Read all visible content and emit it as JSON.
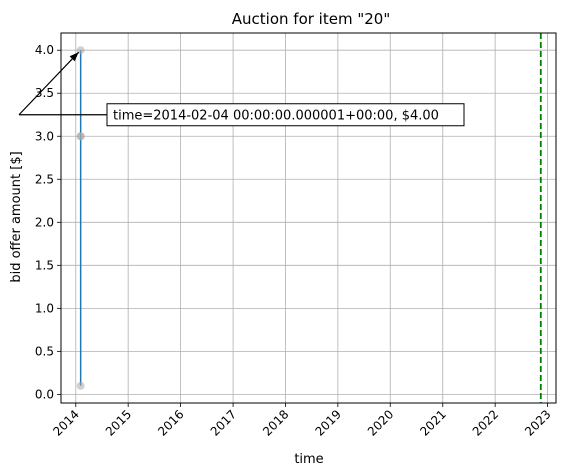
{
  "chart_data": {
    "type": "line",
    "title": "Auction for item \"20\"",
    "xlabel": "time",
    "ylabel": "bid offer amount [$]",
    "x_ticks": [
      "2014",
      "2015",
      "2016",
      "2017",
      "2018",
      "2019",
      "2020",
      "2021",
      "2022",
      "2023"
    ],
    "y_ticks": [
      "0.0",
      "0.5",
      "1.0",
      "1.5",
      "2.0",
      "2.5",
      "3.0",
      "3.5",
      "4.0"
    ],
    "xlim": [
      "2013-09-20",
      "2023-03-01"
    ],
    "ylim": [
      -0.1,
      4.2
    ],
    "grid": true,
    "series": [
      {
        "color": "#1f77b4",
        "points": [
          {
            "x": "2014-02-04",
            "y": 0.1
          },
          {
            "x": "2014-02-04",
            "y": 3.0
          },
          {
            "x": "2014-02-04",
            "y": 4.0
          }
        ]
      }
    ],
    "markers": {
      "color": "#aaaaaa",
      "points": [
        {
          "x": "2014-02-04",
          "y": 0.1
        },
        {
          "x": "2014-02-04",
          "y": 3.0
        },
        {
          "x": "2014-02-04",
          "y": 3.0
        },
        {
          "x": "2014-02-04",
          "y": 4.0
        }
      ]
    },
    "vline": {
      "x": "2022-11-15",
      "color": "#008000",
      "style": "dashed"
    },
    "annotation": {
      "text": "time=2014-02-04 00:00:00.000001+00:00, $4.00",
      "target": {
        "x": "2014-02-04",
        "y": 4.0
      }
    }
  }
}
